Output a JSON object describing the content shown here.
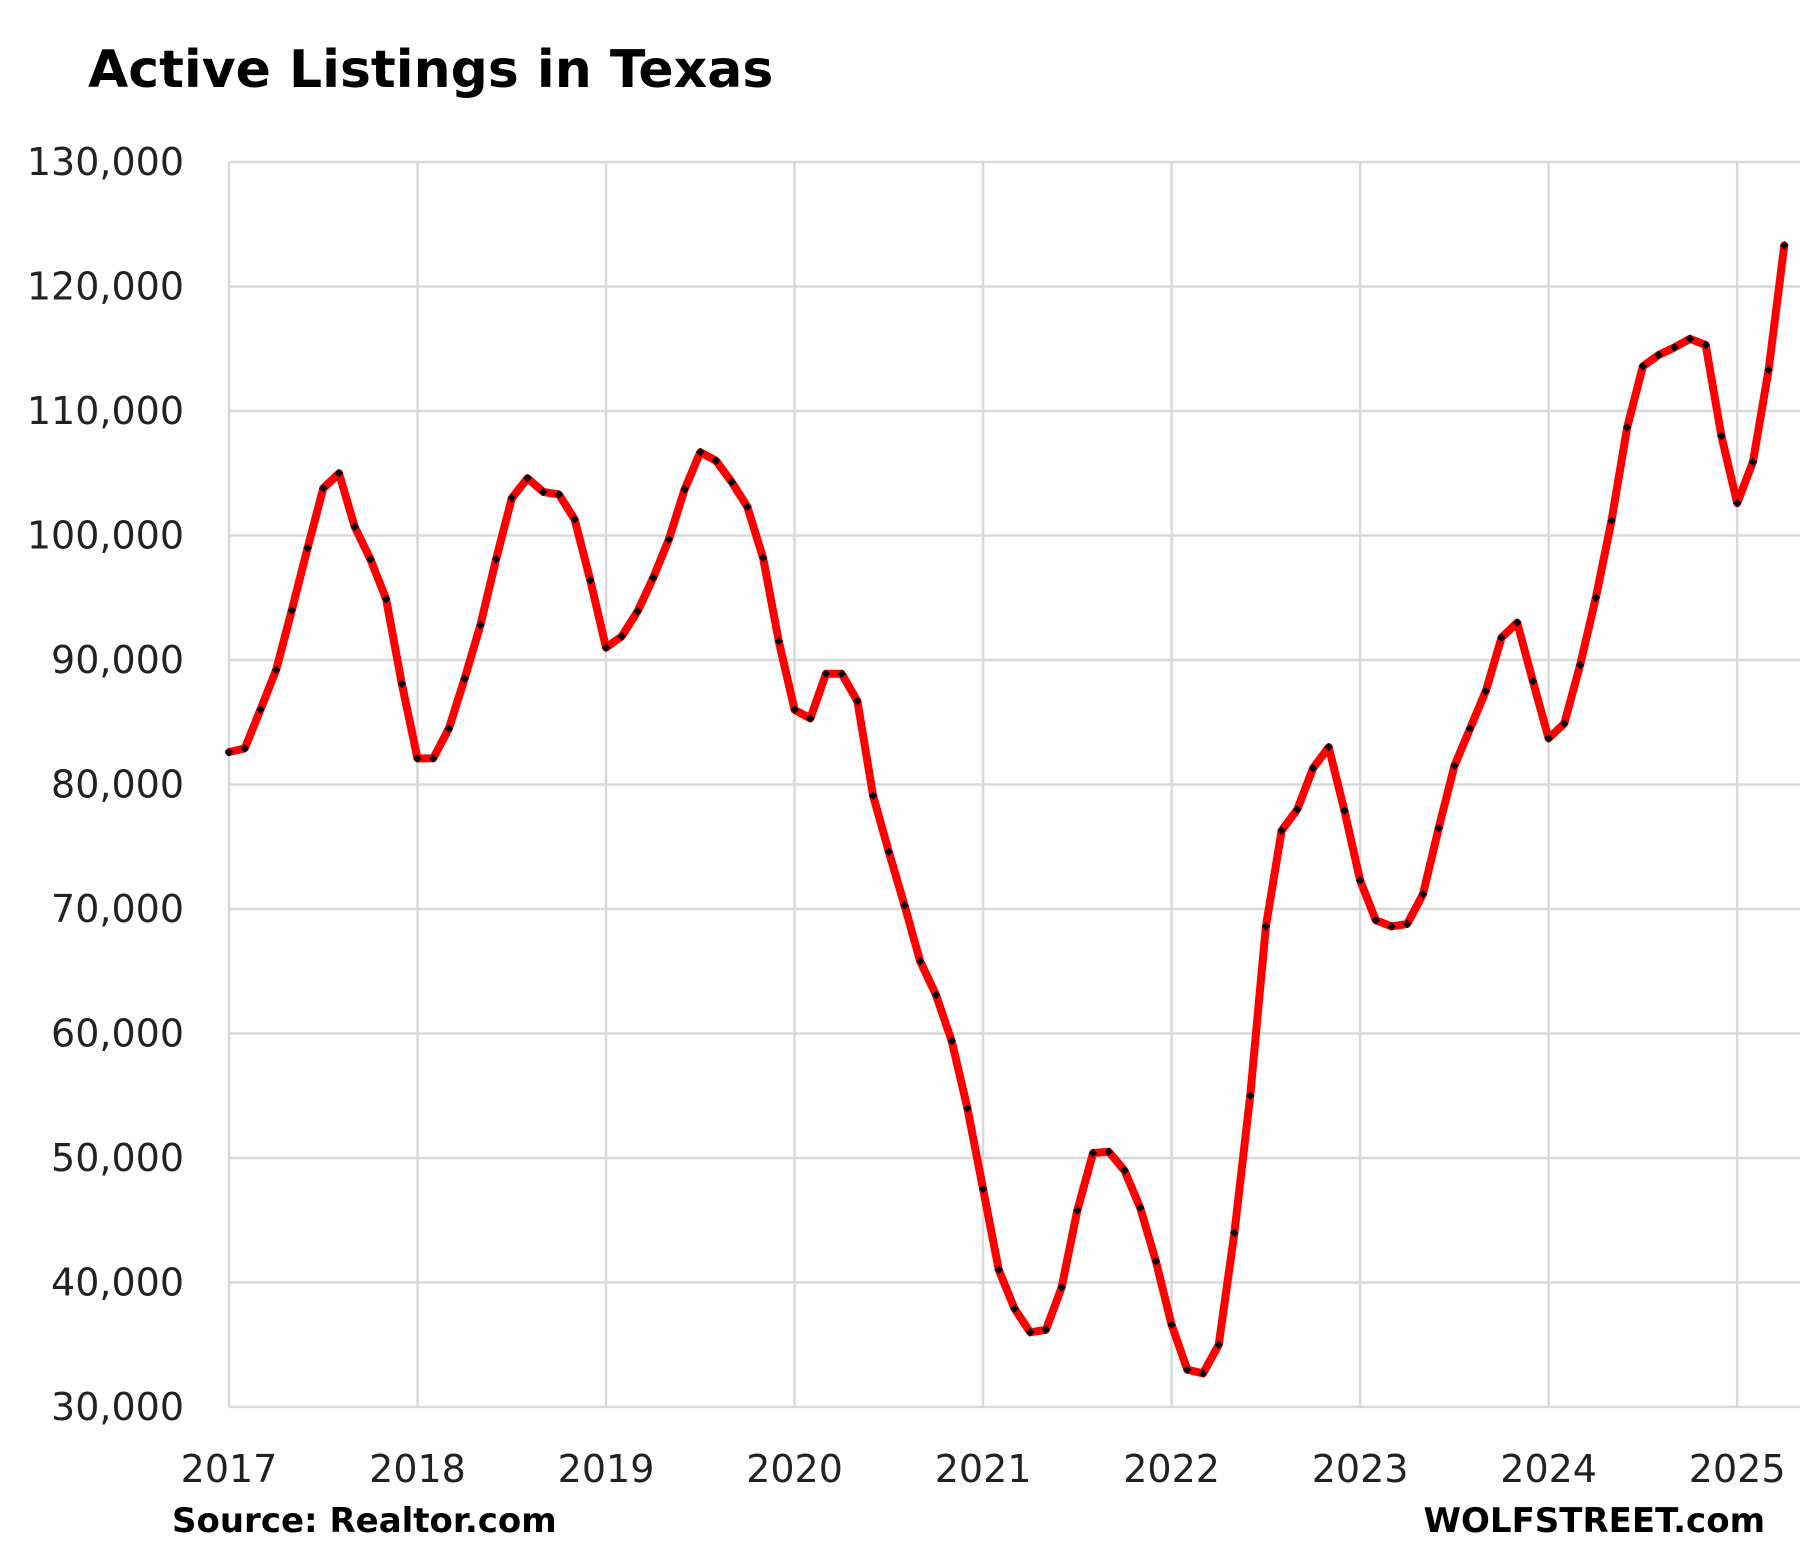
{
  "chart_data": {
    "type": "line",
    "title": "Active Listings in Texas",
    "source": "Source: Realtor.com",
    "credit": "WOLFSTREET.com",
    "xlabel": "",
    "ylabel": "",
    "ylim": [
      30000,
      130000
    ],
    "xlim": [
      "2017-01",
      "2025-05"
    ],
    "grid": true,
    "legend": "none",
    "colors": {
      "line": "#ff0000",
      "marker": "#000000"
    },
    "y_ticks": [
      {
        "value": 30000,
        "label": "30,000"
      },
      {
        "value": 40000,
        "label": "40,000"
      },
      {
        "value": 50000,
        "label": "50,000"
      },
      {
        "value": 60000,
        "label": "60,000"
      },
      {
        "value": 70000,
        "label": "70,000"
      },
      {
        "value": 80000,
        "label": "80,000"
      },
      {
        "value": 90000,
        "label": "90,000"
      },
      {
        "value": 100000,
        "label": "100,000"
      },
      {
        "value": 110000,
        "label": "110,000"
      },
      {
        "value": 120000,
        "label": "120,000"
      },
      {
        "value": 130000,
        "label": "130,000"
      }
    ],
    "x_ticks": [
      {
        "value": "2017-01",
        "label": "2017"
      },
      {
        "value": "2018-01",
        "label": "2018"
      },
      {
        "value": "2019-01",
        "label": "2019"
      },
      {
        "value": "2020-01",
        "label": "2020"
      },
      {
        "value": "2021-01",
        "label": "2021"
      },
      {
        "value": "2022-01",
        "label": "2022"
      },
      {
        "value": "2023-01",
        "label": "2023"
      },
      {
        "value": "2024-01",
        "label": "2024"
      },
      {
        "value": "2025-01",
        "label": "2025"
      }
    ],
    "series": [
      {
        "x": [
          "2017-01",
          "2017-02",
          "2017-03",
          "2017-04",
          "2017-05",
          "2017-06",
          "2017-07",
          "2017-08",
          "2017-09",
          "2017-10",
          "2017-11",
          "2017-12",
          "2018-01",
          "2018-02",
          "2018-03",
          "2018-04",
          "2018-05",
          "2018-06",
          "2018-07",
          "2018-08",
          "2018-09",
          "2018-10",
          "2018-11",
          "2018-12",
          "2019-01",
          "2019-02",
          "2019-03",
          "2019-04",
          "2019-05",
          "2019-06",
          "2019-07",
          "2019-08",
          "2019-09",
          "2019-10",
          "2019-11",
          "2019-12",
          "2020-01",
          "2020-02",
          "2020-03",
          "2020-04",
          "2020-05",
          "2020-06",
          "2020-07",
          "2020-08",
          "2020-09",
          "2020-10",
          "2020-11",
          "2020-12",
          "2021-01",
          "2021-02",
          "2021-03",
          "2021-04",
          "2021-05",
          "2021-06",
          "2021-07",
          "2021-08",
          "2021-09",
          "2021-10",
          "2021-11",
          "2021-12",
          "2022-01",
          "2022-02",
          "2022-03",
          "2022-04",
          "2022-05",
          "2022-06",
          "2022-07",
          "2022-08",
          "2022-09",
          "2022-10",
          "2022-11",
          "2022-12",
          "2023-01",
          "2023-02",
          "2023-03",
          "2023-04",
          "2023-05",
          "2023-06",
          "2023-07",
          "2023-08",
          "2023-09",
          "2023-10",
          "2023-11",
          "2023-12",
          "2024-01",
          "2024-02",
          "2024-03",
          "2024-04",
          "2024-05",
          "2024-06",
          "2024-07",
          "2024-08",
          "2024-09",
          "2024-10",
          "2024-11",
          "2024-12",
          "2025-01",
          "2025-02",
          "2025-03",
          "2025-04"
        ],
        "values": [
          82600,
          82900,
          86000,
          89200,
          94000,
          99000,
          103800,
          105000,
          100700,
          98100,
          94900,
          88100,
          82100,
          82100,
          84500,
          88500,
          92800,
          98100,
          103000,
          104600,
          103500,
          103300,
          101300,
          96400,
          91000,
          91900,
          93900,
          96600,
          99700,
          103700,
          106700,
          106000,
          104300,
          102300,
          98200,
          91500,
          86000,
          85300,
          88900,
          88900,
          86700,
          79100,
          74600,
          70300,
          65800,
          63100,
          59400,
          54000,
          47500,
          41000,
          37900,
          36000,
          36200,
          39600,
          45800,
          50400,
          50500,
          49000,
          46000,
          41700,
          36600,
          33000,
          32700,
          35000,
          44000,
          55000,
          68600,
          76300,
          78000,
          81300,
          83000,
          77900,
          72300,
          69100,
          68600,
          68800,
          71200,
          76500,
          81500,
          84500,
          87500,
          91800,
          93000,
          88300,
          83700,
          84900,
          89600,
          95000,
          101200,
          108700,
          113600,
          114500,
          115100,
          115800,
          115300,
          108000,
          102600,
          105900,
          113300,
          123300
        ]
      }
    ]
  }
}
